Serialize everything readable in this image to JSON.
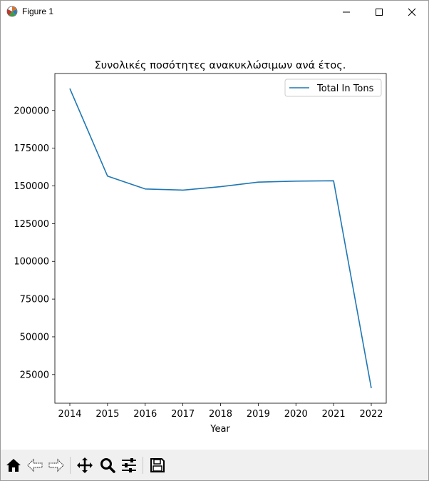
{
  "window": {
    "title": "Figure 1"
  },
  "toolbar": {
    "tools": [
      "home-icon",
      "back-arrow-icon",
      "forward-arrow-icon",
      "pan-icon",
      "zoom-icon",
      "configure-subplots-icon",
      "save-icon"
    ]
  },
  "colors": {
    "series": "#1f77b4",
    "axes": "#000000"
  },
  "chart_data": {
    "type": "line",
    "title": "Συνολικές ποσότητες ανακυκλώσιμων ανά έτος.",
    "xlabel": "Year",
    "ylabel": "",
    "x": [
      "2014",
      "2015",
      "2016",
      "2017",
      "2018",
      "2019",
      "2020",
      "2021",
      "2022"
    ],
    "series": [
      {
        "name": "Total In Tons",
        "values": [
          214500,
          156500,
          148000,
          147200,
          149500,
          152500,
          153200,
          153400,
          16000
        ]
      }
    ],
    "ylim": [
      6000,
      224500
    ],
    "yticks": [
      25000,
      50000,
      75000,
      100000,
      125000,
      150000,
      175000,
      200000
    ],
    "ytick_labels": [
      "25000",
      "50000",
      "75000",
      "100000",
      "125000",
      "150000",
      "175000",
      "200000"
    ],
    "legend_position": "top-right",
    "grid": false
  }
}
